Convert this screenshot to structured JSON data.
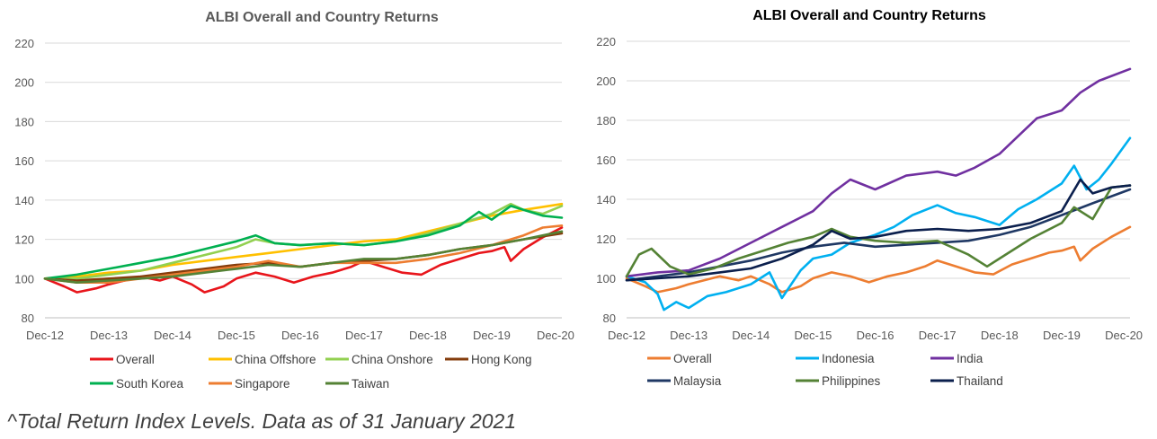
{
  "footnote": "^Total Return Index Levels. Data as of 31 January 2021",
  "chart_data": [
    {
      "type": "line",
      "title": "ALBI Overall and Country Returns",
      "title_color": "#595959",
      "xlabel": "",
      "ylabel": "",
      "x_ticks": [
        "Dec-12",
        "Dec-13",
        "Dec-14",
        "Dec-15",
        "Dec-16",
        "Dec-17",
        "Dec-18",
        "Dec-19",
        "Dec-20"
      ],
      "y_ticks": [
        80,
        100,
        120,
        140,
        160,
        180,
        200,
        220
      ],
      "ylim": [
        80,
        220
      ],
      "xlim": [
        0,
        8.1
      ],
      "grid": true,
      "legend_position": "bottom",
      "legend_columns": 4,
      "series": [
        {
          "name": "Overall",
          "color": "#e8151b",
          "x": [
            0,
            0.3,
            0.5,
            0.8,
            1.0,
            1.5,
            1.8,
            2.0,
            2.3,
            2.5,
            2.8,
            3.0,
            3.3,
            3.6,
            3.9,
            4.2,
            4.5,
            4.8,
            5.0,
            5.3,
            5.6,
            5.9,
            6.2,
            6.5,
            6.8,
            7.0,
            7.2,
            7.3,
            7.5,
            7.8,
            8.1
          ],
          "y": [
            100,
            96,
            93,
            95,
            97,
            101,
            99,
            101,
            97,
            93,
            96,
            100,
            103,
            101,
            98,
            101,
            103,
            106,
            109,
            106,
            103,
            102,
            107,
            110,
            113,
            114,
            116,
            109,
            115,
            121,
            126
          ]
        },
        {
          "name": "China Offshore",
          "color": "#ffc000",
          "x": [
            0,
            0.5,
            1.0,
            1.5,
            2.0,
            2.5,
            3.0,
            3.5,
            4.0,
            4.5,
            5.0,
            5.5,
            6.0,
            6.5,
            7.0,
            7.5,
            8.1
          ],
          "y": [
            100,
            101,
            103,
            104,
            107,
            109,
            111,
            113,
            115,
            117,
            119,
            120,
            124,
            128,
            132,
            135,
            138
          ]
        },
        {
          "name": "China Onshore",
          "color": "#92d050",
          "x": [
            0,
            0.5,
            1.0,
            1.5,
            2.0,
            2.5,
            3.0,
            3.3,
            3.6,
            4.0,
            4.5,
            5.0,
            5.5,
            6.0,
            6.5,
            7.0,
            7.3,
            7.5,
            7.8,
            8.1
          ],
          "y": [
            100,
            100,
            102,
            104,
            108,
            112,
            116,
            120,
            118,
            117,
            118,
            117,
            119,
            123,
            128,
            133,
            138,
            135,
            133,
            137
          ]
        },
        {
          "name": "Hong Kong",
          "color": "#843c0c",
          "x": [
            0,
            0.5,
            1.0,
            1.5,
            2.0,
            2.5,
            3.0,
            3.5,
            4.0,
            4.5,
            5.0,
            5.5,
            6.0,
            6.5,
            7.0,
            7.5,
            8.1
          ],
          "y": [
            100,
            99,
            100,
            101,
            103,
            105,
            107,
            108,
            106,
            108,
            109,
            110,
            112,
            115,
            117,
            120,
            123
          ]
        },
        {
          "name": "South Korea",
          "color": "#00b050",
          "x": [
            0,
            0.5,
            1.0,
            1.5,
            2.0,
            2.5,
            3.0,
            3.3,
            3.6,
            4.0,
            4.5,
            5.0,
            5.5,
            6.0,
            6.5,
            6.8,
            7.0,
            7.3,
            7.5,
            7.8,
            8.1
          ],
          "y": [
            100,
            102,
            105,
            108,
            111,
            115,
            119,
            122,
            118,
            117,
            118,
            117,
            119,
            122,
            127,
            134,
            130,
            137,
            135,
            132,
            131
          ]
        },
        {
          "name": "Singapore",
          "color": "#ed7d31",
          "x": [
            0,
            0.5,
            1.0,
            1.5,
            2.0,
            2.5,
            3.0,
            3.5,
            4.0,
            4.5,
            5.0,
            5.5,
            6.0,
            6.5,
            7.0,
            7.5,
            7.8,
            8.1
          ],
          "y": [
            100,
            98,
            98,
            100,
            102,
            104,
            106,
            109,
            106,
            108,
            108,
            108,
            110,
            113,
            117,
            122,
            126,
            127
          ]
        },
        {
          "name": "Taiwan",
          "color": "#548235",
          "x": [
            0,
            0.5,
            1.0,
            1.5,
            2.0,
            2.5,
            3.0,
            3.5,
            4.0,
            4.5,
            5.0,
            5.5,
            6.0,
            6.5,
            7.0,
            7.5,
            8.1
          ],
          "y": [
            100,
            98,
            99,
            100,
            101,
            103,
            105,
            107,
            106,
            108,
            110,
            110,
            112,
            115,
            117,
            120,
            124
          ]
        }
      ]
    },
    {
      "type": "line",
      "title": "ALBI Overall and Country Returns",
      "title_color": "#000000",
      "xlabel": "",
      "ylabel": "",
      "x_ticks": [
        "Dec-12",
        "Dec-13",
        "Dec-14",
        "Dec-15",
        "Dec-16",
        "Dec-17",
        "Dec-18",
        "Dec-19",
        "Dec-20"
      ],
      "y_ticks": [
        80,
        100,
        120,
        140,
        160,
        180,
        200,
        220
      ],
      "ylim": [
        80,
        220
      ],
      "xlim": [
        0,
        8.1
      ],
      "grid": true,
      "legend_position": "bottom",
      "legend_columns": 3,
      "series": [
        {
          "name": "Overall",
          "color": "#ed7d31",
          "x": [
            0,
            0.3,
            0.5,
            0.8,
            1.0,
            1.5,
            1.8,
            2.0,
            2.3,
            2.5,
            2.8,
            3.0,
            3.3,
            3.6,
            3.9,
            4.2,
            4.5,
            4.8,
            5.0,
            5.3,
            5.6,
            5.9,
            6.2,
            6.5,
            6.8,
            7.0,
            7.2,
            7.3,
            7.5,
            7.8,
            8.1
          ],
          "y": [
            100,
            96,
            93,
            95,
            97,
            101,
            99,
            101,
            97,
            93,
            96,
            100,
            103,
            101,
            98,
            101,
            103,
            106,
            109,
            106,
            103,
            102,
            107,
            110,
            113,
            114,
            116,
            109,
            115,
            121,
            126
          ]
        },
        {
          "name": "Indonesia",
          "color": "#00b0f0",
          "x": [
            0,
            0.3,
            0.5,
            0.6,
            0.8,
            1.0,
            1.3,
            1.6,
            2.0,
            2.3,
            2.5,
            2.8,
            3.0,
            3.3,
            3.6,
            4.0,
            4.3,
            4.6,
            5.0,
            5.3,
            5.6,
            6.0,
            6.3,
            6.6,
            7.0,
            7.2,
            7.4,
            7.6,
            7.8,
            8.1
          ],
          "y": [
            101,
            98,
            92,
            84,
            88,
            85,
            91,
            93,
            97,
            103,
            90,
            104,
            110,
            112,
            118,
            122,
            126,
            132,
            137,
            133,
            131,
            127,
            135,
            140,
            148,
            157,
            145,
            150,
            158,
            171
          ]
        },
        {
          "name": "India",
          "color": "#7030a0",
          "x": [
            0,
            0.5,
            1.0,
            1.5,
            2.0,
            2.5,
            3.0,
            3.3,
            3.6,
            4.0,
            4.5,
            5.0,
            5.3,
            5.6,
            6.0,
            6.3,
            6.6,
            7.0,
            7.3,
            7.6,
            8.1
          ],
          "y": [
            101,
            103,
            104,
            110,
            118,
            126,
            134,
            143,
            150,
            145,
            152,
            154,
            152,
            156,
            163,
            172,
            181,
            185,
            194,
            200,
            206
          ]
        },
        {
          "name": "Malaysia",
          "color": "#1f3864",
          "x": [
            0,
            0.5,
            1.0,
            1.5,
            2.0,
            2.5,
            3.0,
            3.5,
            4.0,
            4.5,
            5.0,
            5.5,
            6.0,
            6.5,
            7.0,
            7.5,
            8.1
          ],
          "y": [
            99,
            101,
            103,
            106,
            109,
            113,
            116,
            118,
            116,
            117,
            118,
            119,
            122,
            126,
            132,
            138,
            145
          ]
        },
        {
          "name": "Philippines",
          "color": "#548235",
          "x": [
            0,
            0.2,
            0.4,
            0.7,
            1.0,
            1.4,
            1.8,
            2.2,
            2.6,
            3.0,
            3.3,
            3.6,
            4.0,
            4.5,
            5.0,
            5.5,
            5.8,
            6.0,
            6.5,
            7.0,
            7.2,
            7.5,
            7.8,
            8.1
          ],
          "y": [
            101,
            112,
            115,
            106,
            102,
            105,
            110,
            114,
            118,
            121,
            125,
            121,
            119,
            118,
            119,
            112,
            106,
            110,
            120,
            128,
            136,
            130,
            146,
            147
          ]
        },
        {
          "name": "Thailand",
          "color": "#0b1f4d",
          "x": [
            0,
            0.5,
            1.0,
            1.5,
            2.0,
            2.5,
            3.0,
            3.3,
            3.6,
            4.0,
            4.5,
            5.0,
            5.5,
            6.0,
            6.5,
            7.0,
            7.3,
            7.5,
            7.8,
            8.1
          ],
          "y": [
            99,
            100,
            101,
            103,
            105,
            110,
            117,
            124,
            120,
            121,
            124,
            125,
            124,
            125,
            128,
            134,
            150,
            143,
            146,
            147
          ]
        }
      ]
    }
  ]
}
